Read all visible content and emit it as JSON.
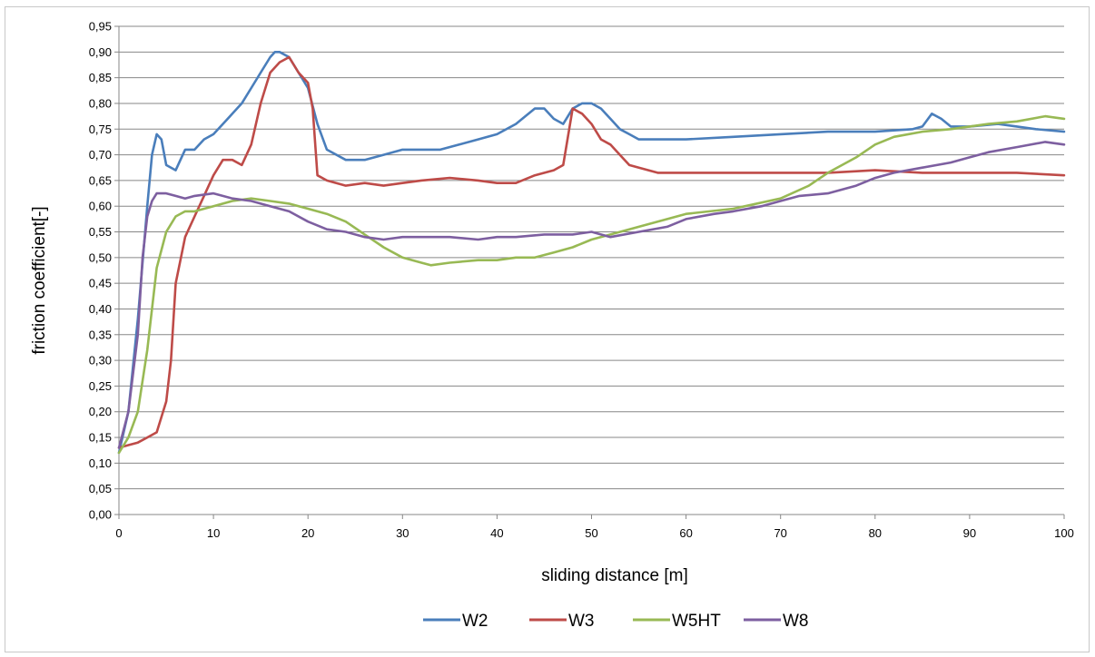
{
  "chart_data": {
    "type": "line",
    "title": "",
    "xlabel": "sliding distance [m]",
    "ylabel": "friction coefficient[-]",
    "xlim": [
      0,
      100
    ],
    "ylim": [
      0,
      0.95
    ],
    "x_ticks": [
      "0",
      "10",
      "20",
      "30",
      "40",
      "50",
      "60",
      "70",
      "80",
      "90",
      "100"
    ],
    "y_ticks": [
      "0,00",
      "0,05",
      "0,10",
      "0,15",
      "0,20",
      "0,25",
      "0,30",
      "0,35",
      "0,40",
      "0,45",
      "0,50",
      "0,55",
      "0,60",
      "0,65",
      "0,70",
      "0,75",
      "0,80",
      "0,85",
      "0,90",
      "0,95"
    ],
    "grid": "horizontal",
    "legend_position": "bottom",
    "series": [
      {
        "name": "W2",
        "color": "#4a7ebb",
        "x": [
          0,
          1,
          2,
          3,
          3.5,
          4,
          4.5,
          5,
          6,
          7,
          8,
          9,
          10,
          11,
          12,
          13,
          14,
          15,
          16,
          16.5,
          17,
          18,
          19,
          20,
          21,
          22,
          24,
          26,
          28,
          30,
          32,
          34,
          36,
          38,
          40,
          42,
          44,
          45,
          46,
          47,
          48,
          49,
          50,
          51,
          52,
          53,
          54,
          55,
          57,
          60,
          65,
          70,
          75,
          80,
          84,
          85,
          86,
          87,
          88,
          90,
          93,
          95,
          97,
          100
        ],
        "y": [
          0.12,
          0.2,
          0.38,
          0.6,
          0.7,
          0.74,
          0.73,
          0.68,
          0.67,
          0.71,
          0.71,
          0.73,
          0.74,
          0.76,
          0.78,
          0.8,
          0.83,
          0.86,
          0.89,
          0.9,
          0.9,
          0.89,
          0.86,
          0.83,
          0.76,
          0.71,
          0.69,
          0.69,
          0.7,
          0.71,
          0.71,
          0.71,
          0.72,
          0.73,
          0.74,
          0.76,
          0.79,
          0.79,
          0.77,
          0.76,
          0.79,
          0.8,
          0.8,
          0.79,
          0.77,
          0.75,
          0.74,
          0.73,
          0.73,
          0.73,
          0.735,
          0.74,
          0.745,
          0.745,
          0.75,
          0.755,
          0.78,
          0.77,
          0.755,
          0.755,
          0.76,
          0.755,
          0.75,
          0.745
        ]
      },
      {
        "name": "W3",
        "color": "#be4b48",
        "x": [
          0,
          1,
          2,
          3,
          4,
          5,
          5.5,
          6,
          7,
          8,
          9,
          10,
          11,
          12,
          13,
          14,
          15,
          16,
          17,
          18,
          19,
          20,
          20.5,
          21,
          22,
          24,
          26,
          28,
          30,
          32,
          35,
          38,
          40,
          42,
          44,
          46,
          47,
          48,
          49,
          50,
          51,
          52,
          53,
          54,
          55,
          57,
          60,
          65,
          70,
          75,
          80,
          85,
          90,
          95,
          100
        ],
        "y": [
          0.13,
          0.135,
          0.14,
          0.15,
          0.16,
          0.22,
          0.3,
          0.45,
          0.54,
          0.58,
          0.62,
          0.66,
          0.69,
          0.69,
          0.68,
          0.72,
          0.8,
          0.86,
          0.88,
          0.89,
          0.86,
          0.84,
          0.79,
          0.66,
          0.65,
          0.64,
          0.645,
          0.64,
          0.645,
          0.65,
          0.655,
          0.65,
          0.645,
          0.645,
          0.66,
          0.67,
          0.68,
          0.79,
          0.78,
          0.76,
          0.73,
          0.72,
          0.7,
          0.68,
          0.675,
          0.665,
          0.665,
          0.665,
          0.665,
          0.665,
          0.67,
          0.665,
          0.665,
          0.665,
          0.66
        ]
      },
      {
        "name": "W5HT",
        "color": "#98b954",
        "x": [
          0,
          1,
          2,
          3,
          4,
          5,
          6,
          7,
          8,
          10,
          12,
          14,
          16,
          18,
          20,
          22,
          24,
          26,
          28,
          30,
          32,
          33,
          35,
          38,
          40,
          42,
          44,
          46,
          48,
          50,
          52,
          55,
          60,
          65,
          70,
          73,
          75,
          78,
          80,
          82,
          85,
          88,
          90,
          92,
          95,
          98,
          100
        ],
        "y": [
          0.12,
          0.15,
          0.2,
          0.32,
          0.48,
          0.55,
          0.58,
          0.59,
          0.59,
          0.6,
          0.61,
          0.615,
          0.61,
          0.605,
          0.595,
          0.585,
          0.57,
          0.545,
          0.52,
          0.5,
          0.49,
          0.485,
          0.49,
          0.495,
          0.495,
          0.5,
          0.5,
          0.51,
          0.52,
          0.535,
          0.545,
          0.56,
          0.585,
          0.595,
          0.615,
          0.64,
          0.665,
          0.695,
          0.72,
          0.735,
          0.745,
          0.75,
          0.755,
          0.76,
          0.765,
          0.775,
          0.77
        ]
      },
      {
        "name": "W8",
        "color": "#7d5fa0",
        "x": [
          0,
          1,
          2,
          2.5,
          3,
          3.5,
          4,
          5,
          6,
          7,
          8,
          10,
          12,
          14,
          16,
          18,
          20,
          22,
          24,
          26,
          28,
          30,
          32,
          35,
          38,
          40,
          42,
          45,
          48,
          50,
          52,
          55,
          58,
          60,
          63,
          65,
          68,
          70,
          72,
          75,
          78,
          80,
          82,
          85,
          88,
          90,
          92,
          95,
          98,
          100
        ],
        "y": [
          0.13,
          0.2,
          0.35,
          0.5,
          0.58,
          0.61,
          0.625,
          0.625,
          0.62,
          0.615,
          0.62,
          0.625,
          0.615,
          0.61,
          0.6,
          0.59,
          0.57,
          0.555,
          0.55,
          0.54,
          0.535,
          0.54,
          0.54,
          0.54,
          0.535,
          0.54,
          0.54,
          0.545,
          0.545,
          0.55,
          0.54,
          0.55,
          0.56,
          0.575,
          0.585,
          0.59,
          0.6,
          0.61,
          0.62,
          0.625,
          0.64,
          0.655,
          0.665,
          0.675,
          0.685,
          0.695,
          0.705,
          0.715,
          0.725,
          0.72
        ]
      }
    ]
  }
}
